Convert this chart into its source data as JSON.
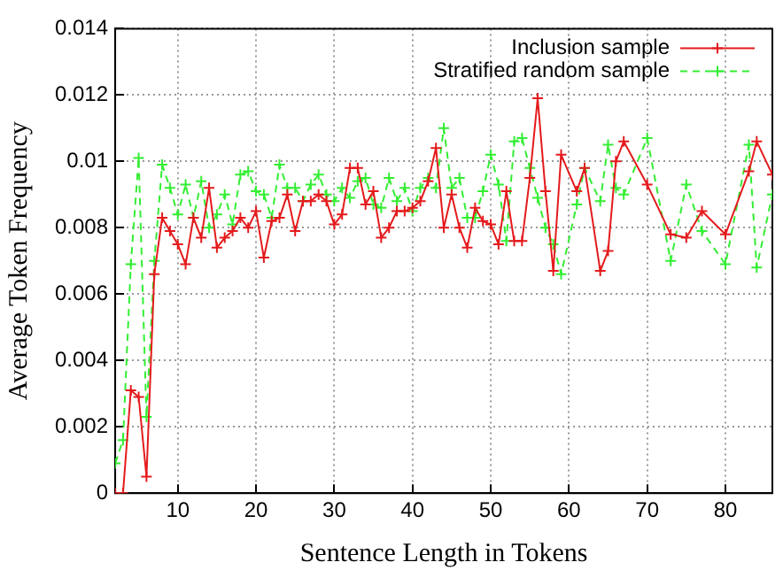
{
  "chart_data": {
    "type": "line",
    "xlabel": "Sentence Length in Tokens",
    "ylabel": "Average Token Frequency",
    "xlim": [
      2,
      86
    ],
    "xticks": [
      10,
      20,
      30,
      40,
      50,
      60,
      70,
      80
    ],
    "ylim": [
      0,
      0.014
    ],
    "yticks": [
      0,
      0.002,
      0.004,
      0.006,
      0.008,
      0.01,
      0.012,
      0.014
    ],
    "grid": true,
    "legend": "top right",
    "series": [
      {
        "name": "Inclusion sample",
        "color": "#e41a1c",
        "marker": "cross",
        "line_style": "solid",
        "x": [
          2,
          3,
          4,
          5,
          6,
          7,
          8,
          9,
          10,
          11,
          12,
          13,
          14,
          15,
          16,
          17,
          18,
          19,
          20,
          21,
          22,
          23,
          24,
          25,
          26,
          27,
          28,
          29,
          30,
          31,
          32,
          33,
          34,
          35,
          36,
          37,
          38,
          39,
          40,
          41,
          42,
          43,
          44,
          45,
          46,
          47,
          48,
          49,
          50,
          51,
          52,
          53,
          54,
          55,
          56,
          57,
          58,
          59,
          61,
          62,
          64,
          65,
          66,
          67,
          70,
          73,
          75,
          77,
          80,
          83,
          84,
          86
        ],
        "values": [
          0,
          0,
          0.0031,
          0.0029,
          0.0005,
          0.0066,
          0.0083,
          0.0079,
          0.0075,
          0.0069,
          0.0083,
          0.0077,
          0.0092,
          0.0074,
          0.0077,
          0.0079,
          0.0083,
          0.008,
          0.0085,
          0.0071,
          0.0082,
          0.0083,
          0.009,
          0.0079,
          0.0088,
          0.0088,
          0.009,
          0.0088,
          0.0081,
          0.0084,
          0.0098,
          0.0098,
          0.0087,
          0.0091,
          0.0077,
          0.008,
          0.0085,
          0.0085,
          0.0086,
          0.0088,
          0.0094,
          0.0104,
          0.008,
          0.009,
          0.008,
          0.0074,
          0.0086,
          0.0082,
          0.0081,
          0.0075,
          0.0091,
          0.0076,
          0.0076,
          0.0095,
          0.0119,
          0.0091,
          0.0067,
          0.0102,
          0.0091,
          0.0098,
          0.0067,
          0.0073,
          0.01,
          0.0106,
          0.0093,
          0.0078,
          0.0077,
          0.0085,
          0.0078,
          0.0097,
          0.0106,
          0.0096
        ]
      },
      {
        "name": "Stratified random sample",
        "color": "#33ee33",
        "marker": "cross",
        "line_style": "dashed",
        "x": [
          2,
          3,
          4,
          5,
          6,
          7,
          8,
          9,
          10,
          11,
          12,
          13,
          14,
          15,
          16,
          17,
          18,
          19,
          20,
          21,
          22,
          23,
          24,
          25,
          26,
          27,
          28,
          29,
          30,
          31,
          32,
          33,
          34,
          35,
          36,
          37,
          38,
          39,
          40,
          41,
          42,
          43,
          44,
          45,
          46,
          47,
          48,
          49,
          50,
          51,
          52,
          53,
          54,
          55,
          56,
          57,
          58,
          59,
          61,
          62,
          64,
          65,
          66,
          67,
          70,
          73,
          75,
          77,
          80,
          83,
          84,
          86
        ],
        "values": [
          0.0009,
          0.0016,
          0.0069,
          0.0101,
          0.0023,
          0.007,
          0.0099,
          0.0092,
          0.0084,
          0.0093,
          0.0083,
          0.0094,
          0.008,
          0.0084,
          0.009,
          0.0081,
          0.0096,
          0.0097,
          0.0091,
          0.009,
          0.0083,
          0.0099,
          0.0092,
          0.0092,
          0.0088,
          0.0093,
          0.0096,
          0.009,
          0.0088,
          0.0092,
          0.0089,
          0.0094,
          0.0095,
          0.0087,
          0.0086,
          0.0095,
          0.0088,
          0.0092,
          0.0085,
          0.0092,
          0.0095,
          0.0092,
          0.011,
          0.0092,
          0.0095,
          0.0083,
          0.0083,
          0.0091,
          0.0102,
          0.0093,
          0.0076,
          0.0106,
          0.0107,
          0.0098,
          0.0089,
          0.008,
          0.0075,
          0.0066,
          0.0087,
          0.0098,
          0.0088,
          0.0105,
          0.0092,
          0.009,
          0.0107,
          0.007,
          0.0093,
          0.0079,
          0.0069,
          0.0105,
          0.0068,
          0.009
        ]
      }
    ]
  }
}
